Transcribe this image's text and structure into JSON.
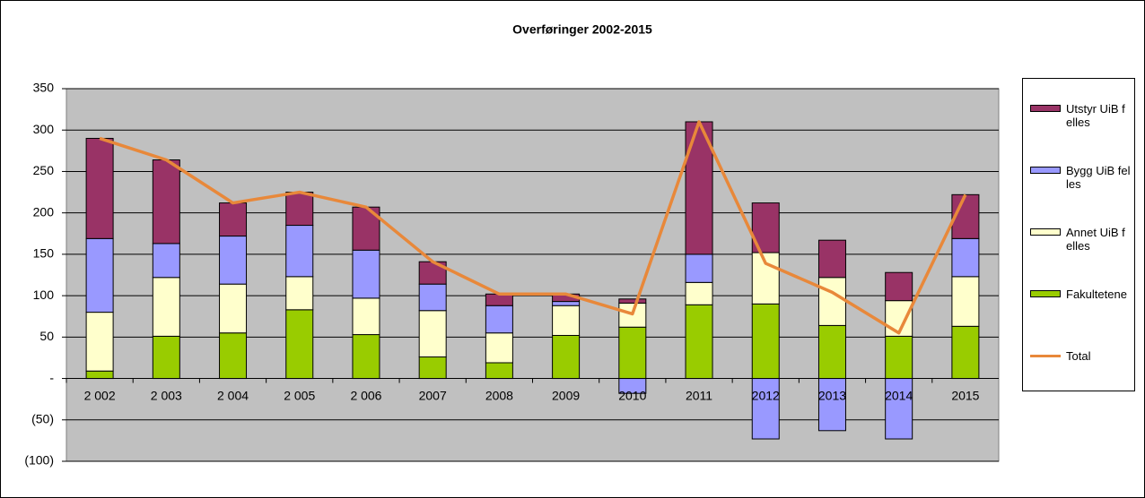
{
  "chart_data": {
    "type": "bar",
    "stacked": true,
    "title": "Overføringer  2002-2015",
    "categories": [
      "2 002",
      "2 003",
      "2 004",
      "2 005",
      "2 006",
      "2007",
      "2008",
      "2009",
      "2010",
      "2011",
      "2012",
      "2013",
      "2014",
      "2015"
    ],
    "series": [
      {
        "name": "Fakultetene",
        "color": "#99cc00",
        "values": [
          9,
          51,
          55,
          83,
          53,
          26,
          19,
          52,
          62,
          89,
          90,
          64,
          51,
          63
        ]
      },
      {
        "name": "Annet UiB felles",
        "color": "#ffffcc",
        "values": [
          71,
          71,
          59,
          40,
          44,
          56,
          36,
          36,
          29,
          27,
          62,
          58,
          43,
          60
        ]
      },
      {
        "name": "Bygg UiB felles",
        "color": "#9999ff",
        "values": [
          89,
          41,
          58,
          62,
          58,
          32,
          33,
          5,
          -18,
          34,
          -73,
          -63,
          -73,
          46
        ]
      },
      {
        "name": "Utstyr UiB felles",
        "color": "#993366",
        "values": [
          121,
          101,
          40,
          40,
          52,
          27,
          14,
          9,
          5,
          160,
          60,
          45,
          34,
          53
        ]
      },
      {
        "name": "Total",
        "type": "line",
        "color": "#e8883a",
        "values": [
          290,
          264,
          212,
          225,
          207,
          141,
          102,
          102,
          78,
          310,
          139,
          104,
          55,
          222
        ]
      }
    ],
    "ylim": [
      -100,
      350
    ],
    "yticks": [
      {
        "value": -100,
        "label": "(100)"
      },
      {
        "value": -50,
        "label": "(50)"
      },
      {
        "value": 0,
        "label": "-"
      },
      50,
      100,
      150,
      200,
      250,
      300,
      350
    ],
    "grid": true,
    "legend": "right"
  }
}
